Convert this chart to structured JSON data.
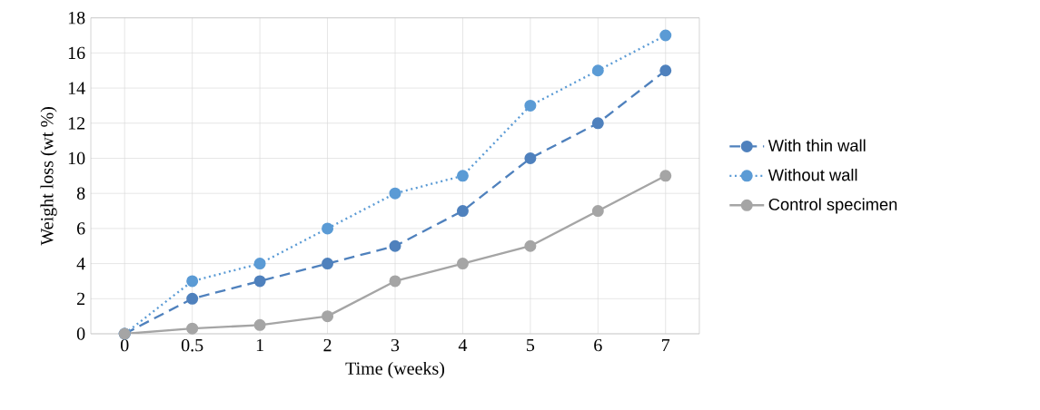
{
  "chart_data": {
    "type": "line",
    "xlabel": "Time (weeks)",
    "ylabel": "Weight loss (wt %)",
    "categories": [
      "0",
      "0.5",
      "1",
      "2",
      "3",
      "4",
      "5",
      "6",
      "7"
    ],
    "series": [
      {
        "name": "With thin wall",
        "color": "#4f81bd",
        "line_style": "dashed",
        "marker": "circle",
        "values": [
          0,
          2,
          3,
          4,
          5,
          7,
          10,
          12,
          15
        ]
      },
      {
        "name": "Without wall",
        "color": "#5b9bd5",
        "line_style": "dotted",
        "marker": "circle",
        "values": [
          0,
          3,
          4,
          6,
          8,
          9,
          13,
          15,
          17
        ]
      },
      {
        "name": "Control specimen",
        "color": "#a5a5a5",
        "line_style": "solid",
        "marker": "circle",
        "values": [
          0,
          0.3,
          0.5,
          1,
          3,
          4,
          5,
          7,
          9
        ]
      }
    ],
    "ylim": [
      0,
      18
    ],
    "yticks": [
      0,
      2,
      4,
      6,
      8,
      10,
      12,
      14,
      16,
      18
    ],
    "grid": true,
    "legend": "right"
  }
}
